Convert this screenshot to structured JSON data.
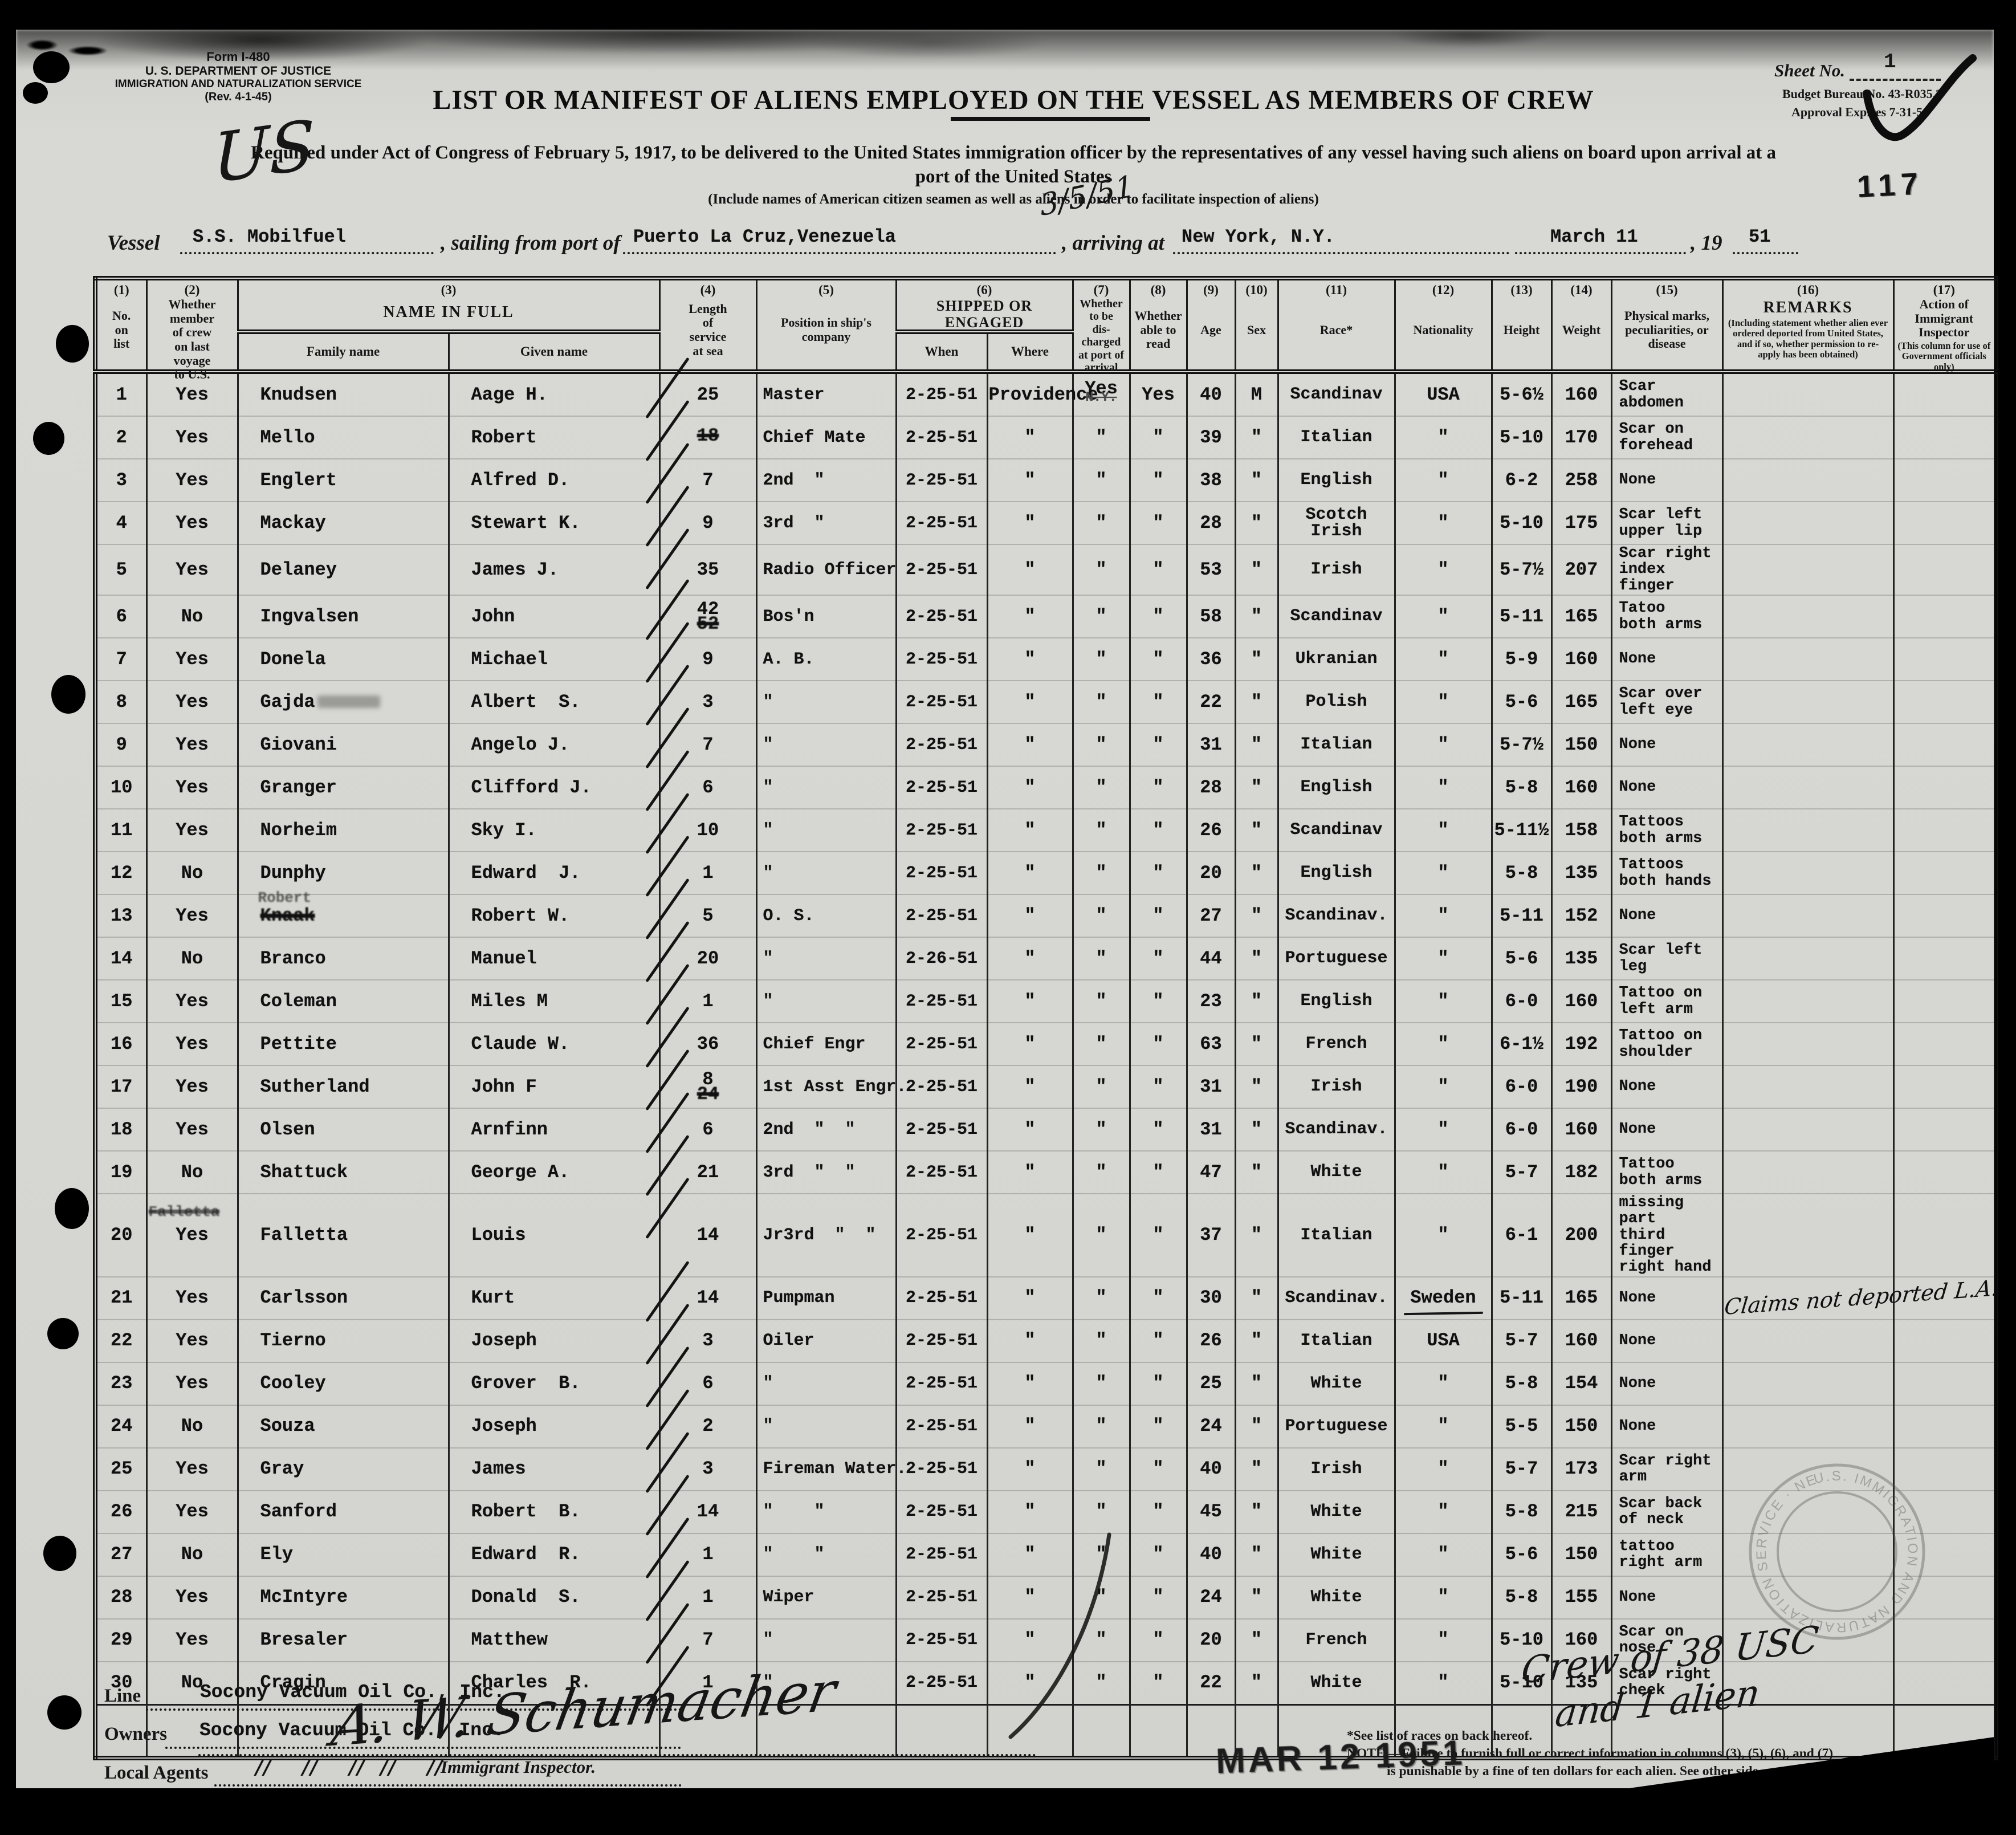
{
  "form": {
    "form_number": "Form I-480",
    "agency_line1": "U. S. DEPARTMENT OF JUSTICE",
    "agency_line2": "IMMIGRATION AND NATURALIZATION SERVICE",
    "agency_line3": "(Rev. 4-1-45)",
    "title": "LIST OR MANIFEST OF ALIENS EMPLOYED ON THE VESSEL AS MEMBERS OF CREW",
    "sheet_label": "Sheet No.",
    "sheet_value": "1",
    "budget_line": "Budget Bureau No. 43-R035.3",
    "approval_line": "Approval Expires 7-31-50",
    "stamp_number": "117",
    "requirement_line1": "Required under Act of Congress of February 5, 1917, to be delivered to the United States immigration officer by the representatives of any vessel having such aliens on board upon arrival at a",
    "requirement_line2": "port of the United States",
    "include_note": "(Include names of American citizen seamen as well as aliens in order to facilitate inspection of aliens)",
    "handwritten_us": "US",
    "handwritten_date": "3/5/51",
    "vessel_label": "Vessel",
    "vessel_value": "S.S. Mobilfuel",
    "sailing_label": ", sailing from port of",
    "sailing_value": "Puerto La Cruz,Venezuela",
    "arriving_label": ", arriving at",
    "arriving_value": "New York, N.Y.",
    "arrival_date_value": "March 11",
    "year_label": ", 19",
    "year_value": "51"
  },
  "table": {
    "headers": {
      "c1_num": "(1)",
      "c1": "No.\non\nlist",
      "c2_num": "(2)",
      "c2": "Whether\nmember\nof crew\non last\nvoyage\nto U.S.",
      "c3_num": "(3)",
      "c3": "NAME IN FULL",
      "c3a": "Family name",
      "c3b": "Given name",
      "c4_num": "(4)",
      "c4": "Length\nof\nservice\nat sea",
      "c5_num": "(5)",
      "c5": "Position in ship's\ncompany",
      "c6_num": "(6)",
      "c6": "SHIPPED OR ENGAGED",
      "c6a": "When",
      "c6b": "Where",
      "c7_num": "(7)",
      "c7": "Whether\nto be\ndis-\ncharged\nat port of\narrival",
      "c8_num": "(8)",
      "c8": "Whether\nable to\nread",
      "c9_num": "(9)",
      "c9": "Age",
      "c10_num": "(10)",
      "c10": "Sex",
      "c11_num": "(11)",
      "c11": "Race*",
      "c12_num": "(12)",
      "c12": "Nationality",
      "c13_num": "(13)",
      "c13": "Height",
      "c14_num": "(14)",
      "c14": "Weight",
      "c15_num": "(15)",
      "c15": "Physical marks,\npeculiarities, or\ndisease",
      "c16_num": "(16)",
      "c16": "REMARKS",
      "c16_note": "(Including statement whether alien ever\nordered deported from United States,\nand if so, whether permission to re-\napply has been obtained)",
      "c17_num": "(17)",
      "c17": "Action of Immigrant\nInspector",
      "c17_note": "(This column for use of\nGovernment officials only)"
    },
    "rows": [
      {
        "no": "1",
        "member": "Yes",
        "family": "Knudsen",
        "given": "Aage H.",
        "length": "25",
        "position": "Master",
        "when": "2-25-51",
        "where": "Providence",
        "discharge": "Yes",
        "discharge_struck": "N.Y.",
        "read": "Yes",
        "age": "40",
        "sex": "M",
        "race": "Scandinav",
        "nationality": "USA",
        "height": "5-6½",
        "weight": "160",
        "marks": "Scar\nabdomen"
      },
      {
        "no": "2",
        "member": "Yes",
        "family": "Mello",
        "given": "Robert",
        "length": "",
        "length_struck": "18",
        "position": "Chief Mate",
        "when": "2-25-51",
        "where": "\"",
        "discharge": "\"",
        "read": "\"",
        "age": "39",
        "sex": "\"",
        "race": "Italian",
        "nationality": "\"",
        "height": "5-10",
        "weight": "170",
        "marks": "Scar on\nforehead"
      },
      {
        "no": "3",
        "member": "Yes",
        "family": "Englert",
        "given": "Alfred D.",
        "length": "7",
        "position": "2nd  \"",
        "when": "2-25-51",
        "where": "\"",
        "discharge": "\"",
        "read": "\"",
        "age": "38",
        "sex": "\"",
        "race": "English",
        "nationality": "\"",
        "height": "6-2",
        "weight": "258",
        "marks": "None"
      },
      {
        "no": "4",
        "member": "Yes",
        "family": "Mackay",
        "given": "Stewart K.",
        "length": "9",
        "position": "3rd  \"",
        "when": "2-25-51",
        "where": "\"",
        "discharge": "\"",
        "read": "\"",
        "age": "28",
        "sex": "\"",
        "race": "Scotch\nIrish",
        "nationality": "\"",
        "height": "5-10",
        "weight": "175",
        "marks": "Scar left\nupper lip"
      },
      {
        "no": "5",
        "member": "Yes",
        "family": "Delaney",
        "given": "James J.",
        "length": "35",
        "position": "Radio Officer",
        "when": "2-25-51",
        "where": "\"",
        "discharge": "\"",
        "read": "\"",
        "age": "53",
        "sex": "\"",
        "race": "Irish",
        "nationality": "\"",
        "height": "5-7½",
        "weight": "207",
        "marks": "Scar right\nindex finger"
      },
      {
        "no": "6",
        "member": "No",
        "family": "Ingvalsen",
        "given": "John",
        "length": "42",
        "length_struck": "52",
        "position": "Bos'n",
        "when": "2-25-51",
        "where": "\"",
        "discharge": "\"",
        "read": "\"",
        "age": "58",
        "sex": "\"",
        "race": "Scandinav",
        "nationality": "\"",
        "height": "5-11",
        "weight": "165",
        "marks": "Tatoo\nboth arms"
      },
      {
        "no": "7",
        "member": "Yes",
        "family": "Donela",
        "given": "Michael",
        "length": "9",
        "position": "A. B.",
        "when": "2-25-51",
        "where": "\"",
        "discharge": "\"",
        "read": "\"",
        "age": "36",
        "sex": "\"",
        "race": "Ukranian",
        "nationality": "\"",
        "height": "5-9",
        "weight": "160",
        "marks": "None"
      },
      {
        "no": "8",
        "member": "Yes",
        "family": "Gajda",
        "family_smudge": true,
        "given": "Albert  S.",
        "length": "3",
        "position": "\"",
        "when": "2-25-51",
        "where": "\"",
        "discharge": "\"",
        "read": "\"",
        "age": "22",
        "sex": "\"",
        "race": "Polish",
        "nationality": "\"",
        "height": "5-6",
        "weight": "165",
        "marks": "Scar over\nleft eye"
      },
      {
        "no": "9",
        "member": "Yes",
        "family": "Giovani",
        "given": "Angelo J.",
        "length": "7",
        "position": "\"",
        "when": "2-25-51",
        "where": "\"",
        "discharge": "\"",
        "read": "\"",
        "age": "31",
        "sex": "\"",
        "race": "Italian",
        "nationality": "\"",
        "height": "5-7½",
        "weight": "150",
        "marks": "None"
      },
      {
        "no": "10",
        "member": "Yes",
        "family": "Granger",
        "given": "Clifford J.",
        "length": "6",
        "position": "\"",
        "when": "2-25-51",
        "where": "\"",
        "discharge": "\"",
        "read": "\"",
        "age": "28",
        "sex": "\"",
        "race": "English",
        "nationality": "\"",
        "height": "5-8",
        "weight": "160",
        "marks": "None"
      },
      {
        "no": "11",
        "member": "Yes",
        "family": "Norheim",
        "given": "Sky I.",
        "length": "10",
        "position": "\"",
        "when": "2-25-51",
        "where": "\"",
        "discharge": "\"",
        "read": "\"",
        "age": "26",
        "sex": "\"",
        "race": "Scandinav",
        "nationality": "\"",
        "height": "5-11½",
        "weight": "158",
        "marks": "Tattoos\nboth arms"
      },
      {
        "no": "12",
        "member": "No",
        "family": "Dunphy",
        "given": "Edward  J.",
        "length": "1",
        "position": "\"",
        "when": "2-25-51",
        "where": "\"",
        "discharge": "\"",
        "read": "\"",
        "age": "20",
        "sex": "\"",
        "race": "English",
        "nationality": "\"",
        "height": "5-8",
        "weight": "135",
        "marks": "Tattoos\nboth hands"
      },
      {
        "no": "13",
        "member": "Yes",
        "family": "Knaak",
        "family_struck": true,
        "family_ghost": "Robert",
        "given": "Robert W.",
        "length": "5",
        "position": "O. S.",
        "when": "2-25-51",
        "where": "\"",
        "discharge": "\"",
        "read": "\"",
        "age": "27",
        "sex": "\"",
        "race": "Scandinav.",
        "nationality": "\"",
        "height": "5-11",
        "weight": "152",
        "marks": "None"
      },
      {
        "no": "14",
        "member": "No",
        "family": "Branco",
        "given": "Manuel",
        "length": "20",
        "position": "\"",
        "when": "2-26-51",
        "where": "\"",
        "discharge": "\"",
        "read": "\"",
        "age": "44",
        "sex": "\"",
        "race": "Portuguese",
        "nationality": "\"",
        "height": "5-6",
        "weight": "135",
        "marks": "Scar left\nleg"
      },
      {
        "no": "15",
        "member": "Yes",
        "family": "Coleman",
        "given": "Miles M",
        "length": "1",
        "position": "\"",
        "when": "2-25-51",
        "where": "\"",
        "discharge": "\"",
        "read": "\"",
        "age": "23",
        "sex": "\"",
        "race": "English",
        "nationality": "\"",
        "height": "6-0",
        "weight": "160",
        "marks": "Tattoo on\nleft arm"
      },
      {
        "no": "16",
        "member": "Yes",
        "family": "Pettite",
        "given": "Claude W.",
        "length": "36",
        "position": "Chief Engr",
        "when": "2-25-51",
        "where": "\"",
        "discharge": "\"",
        "read": "\"",
        "age": "63",
        "sex": "\"",
        "race": "French",
        "nationality": "\"",
        "height": "6-1½",
        "weight": "192",
        "marks": "Tattoo on\nshoulder"
      },
      {
        "no": "17",
        "member": "Yes",
        "family": "Sutherland",
        "given": "John F",
        "length": "8",
        "length_struck": "24",
        "position": "1st Asst Engr.",
        "when": "2-25-51",
        "where": "\"",
        "discharge": "\"",
        "read": "\"",
        "age": "31",
        "sex": "\"",
        "race": "Irish",
        "nationality": "\"",
        "height": "6-0",
        "weight": "190",
        "marks": "None"
      },
      {
        "no": "18",
        "member": "Yes",
        "family": "Olsen",
        "given": "Arnfinn",
        "length": "6",
        "position": "2nd  \"  \"",
        "when": "2-25-51",
        "where": "\"",
        "discharge": "\"",
        "read": "\"",
        "age": "31",
        "sex": "\"",
        "race": "Scandinav.",
        "nationality": "\"",
        "height": "6-0",
        "weight": "160",
        "marks": "None"
      },
      {
        "no": "19",
        "member": "No",
        "family": "Shattuck",
        "given": "George A.",
        "length": "21",
        "position": "3rd  \"  \"",
        "when": "2-25-51",
        "where": "\"",
        "discharge": "\"",
        "read": "\"",
        "age": "47",
        "sex": "\"",
        "race": "White",
        "nationality": "\"",
        "height": "5-7",
        "weight": "182",
        "marks": "Tattoo\nboth arms"
      },
      {
        "no": "20",
        "member": "Yes",
        "member_ghost": "Falletta",
        "family": "Falletta",
        "given": "Louis",
        "length": "14",
        "position": "Jr3rd  \"  \"",
        "when": "2-25-51",
        "where": "\"",
        "discharge": "\"",
        "read": "\"",
        "age": "37",
        "sex": "\"",
        "race": "Italian",
        "nationality": "\"",
        "height": "6-1",
        "weight": "200",
        "marks": "missing part\nthird finger\nright hand"
      },
      {
        "no": "21",
        "member": "Yes",
        "family": "Carlsson",
        "given": "Kurt",
        "length": "14",
        "position": "Pumpman",
        "when": "2-25-51",
        "where": "\"",
        "discharge": "\"",
        "read": "\"",
        "age": "30",
        "sex": "\"",
        "race": "Scandinav.",
        "nationality": "Sweden",
        "nationality_underline": true,
        "height": "5-11",
        "weight": "165",
        "marks": "None",
        "remark_hand": "Claims not deported  L.A."
      },
      {
        "no": "22",
        "member": "Yes",
        "family": "Tierno",
        "given": "Joseph",
        "length": "3",
        "position": "Oiler",
        "when": "2-25-51",
        "where": "\"",
        "discharge": "\"",
        "read": "\"",
        "age": "26",
        "sex": "\"",
        "race": "Italian",
        "nationality": "USA",
        "height": "5-7",
        "weight": "160",
        "marks": "None"
      },
      {
        "no": "23",
        "member": "Yes",
        "family": "Cooley",
        "given": "Grover  B.",
        "length": "6",
        "position": "\"",
        "when": "2-25-51",
        "where": "\"",
        "discharge": "\"",
        "read": "\"",
        "age": "25",
        "sex": "\"",
        "race": "White",
        "nationality": "\"",
        "height": "5-8",
        "weight": "154",
        "marks": "None"
      },
      {
        "no": "24",
        "member": "No",
        "family": "Souza",
        "given": "Joseph",
        "length": "2",
        "position": "\"",
        "when": "2-25-51",
        "where": "\"",
        "discharge": "\"",
        "read": "\"",
        "age": "24",
        "sex": "\"",
        "race": "Portuguese",
        "nationality": "\"",
        "height": "5-5",
        "weight": "150",
        "marks": "None"
      },
      {
        "no": "25",
        "member": "Yes",
        "family": "Gray",
        "given": "James",
        "length": "3",
        "position": "Fireman Water.",
        "when": "2-25-51",
        "where": "\"",
        "discharge": "\"",
        "read": "\"",
        "age": "40",
        "sex": "\"",
        "race": "Irish",
        "nationality": "\"",
        "height": "5-7",
        "weight": "173",
        "marks": "Scar right\narm"
      },
      {
        "no": "26",
        "member": "Yes",
        "family": "Sanford",
        "given": "Robert  B.",
        "length": "14",
        "position": "\"    \"",
        "when": "2-25-51",
        "where": "\"",
        "discharge": "\"",
        "read": "\"",
        "age": "45",
        "sex": "\"",
        "race": "White",
        "nationality": "\"",
        "height": "5-8",
        "weight": "215",
        "marks": "Scar back\nof neck"
      },
      {
        "no": "27",
        "member": "No",
        "family": "Ely",
        "given": "Edward  R.",
        "length": "1",
        "position": "\"    \"",
        "when": "2-25-51",
        "where": "\"",
        "discharge": "\"",
        "read": "\"",
        "age": "40",
        "sex": "\"",
        "race": "White",
        "nationality": "\"",
        "height": "5-6",
        "weight": "150",
        "marks": "tattoo\nright arm"
      },
      {
        "no": "28",
        "member": "Yes",
        "family": "McIntyre",
        "given": "Donald  S.",
        "length": "1",
        "position": "Wiper",
        "when": "2-25-51",
        "where": "\"",
        "discharge": "\"",
        "read": "\"",
        "age": "24",
        "sex": "\"",
        "race": "White",
        "nationality": "\"",
        "height": "5-8",
        "weight": "155",
        "marks": "None"
      },
      {
        "no": "29",
        "member": "Yes",
        "family": "Bresaler",
        "given": "Matthew",
        "length": "7",
        "position": "\"",
        "when": "2-25-51",
        "where": "\"",
        "discharge": "\"",
        "read": "\"",
        "age": "20",
        "sex": "\"",
        "race": "French",
        "nationality": "\"",
        "height": "5-10",
        "weight": "160",
        "marks": "Scar on\nnose"
      },
      {
        "no": "30",
        "member": "No",
        "family": "Cragin",
        "given": "Charles  R.",
        "length": "1",
        "position": "\"",
        "when": "2-25-51",
        "where": "\"",
        "discharge": "\"",
        "read": "\"",
        "age": "22",
        "sex": "\"",
        "race": "White",
        "nationality": "\"",
        "height": "5-10",
        "weight": "135",
        "marks": "Scar right\ncheek"
      }
    ]
  },
  "footer": {
    "line_label": "Line",
    "line_value": "Socony Vacuum Oil Co., Inc.",
    "owners_label": "Owners",
    "owners_value": "Socony Vacuum Oil Co., Inc.",
    "agents_label": "Local Agents",
    "agents_value": "//    //    //  //    //",
    "signature": "A. W. Schumacher",
    "signature_label": "Immigrant Inspector.",
    "date_stamp": "MAR 12 1951",
    "crew_note_line1": "Crew of 38 USC",
    "crew_note_line2": "and 1 alien",
    "footnote_line1": "*See list of races on back hereof.",
    "footnote_line2": "NOTE.—Failure to furnish full or correct information in columns (3), (5), (6), and (7)",
    "footnote_line3": "is punishable by a fine of ten dollars for each alien.  See other side.",
    "seal_text": "U.S. IMMIGRATION AND NATURALIZATION SERVICE · NEW YORK N.Y. ·"
  }
}
